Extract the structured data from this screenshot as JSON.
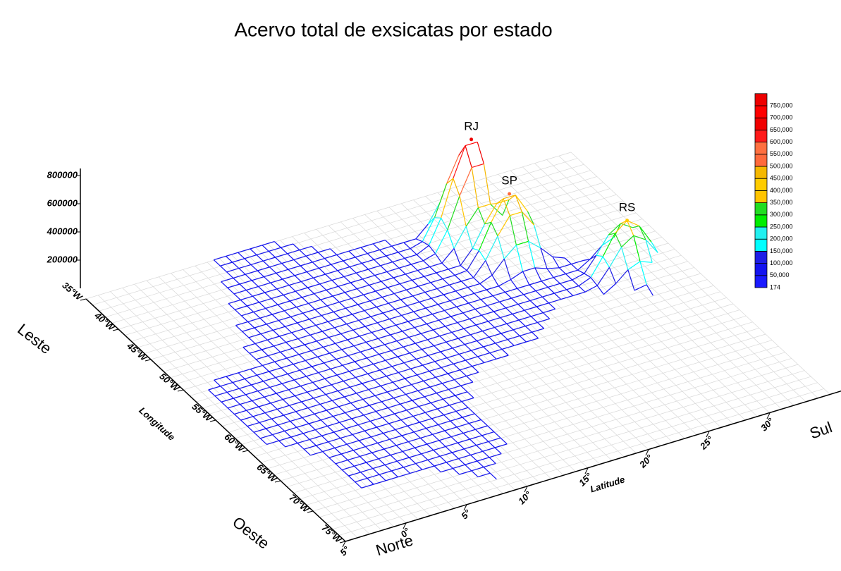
{
  "chart_data": {
    "type": "surface3d",
    "title": "Acervo total de exsicatas por estado",
    "xlabel": "Longitude",
    "ylabel": "Latitude",
    "direction_labels": {
      "lon_start": "Leste",
      "lon_end": "Oeste",
      "lat_start": "Norte",
      "lat_end": "Sul"
    },
    "xlim": [
      -35,
      -75
    ],
    "xticks": [
      {
        "value": -35,
        "label": "35°W"
      },
      {
        "value": -40,
        "label": "40°W"
      },
      {
        "value": -45,
        "label": "45°W"
      },
      {
        "value": -50,
        "label": "50°W"
      },
      {
        "value": -55,
        "label": "55°W"
      },
      {
        "value": -60,
        "label": "60°W"
      },
      {
        "value": -65,
        "label": "65°W"
      },
      {
        "value": -70,
        "label": "70°W"
      },
      {
        "value": -75,
        "label": "75°W"
      }
    ],
    "ylim": [
      5,
      -35
    ],
    "yticks": [
      {
        "value": 5,
        "label": "5°"
      },
      {
        "value": 0,
        "label": "0°"
      },
      {
        "value": -5,
        "label": "5°"
      },
      {
        "value": -10,
        "label": "10°"
      },
      {
        "value": -15,
        "label": "15°"
      },
      {
        "value": -20,
        "label": "20°"
      },
      {
        "value": -25,
        "label": "25°"
      },
      {
        "value": -30,
        "label": "30°"
      }
    ],
    "zlim": [
      0,
      850000
    ],
    "zticks": [
      200000,
      400000,
      600000,
      800000
    ],
    "peaks": [
      {
        "name": "RJ",
        "lon": -43,
        "lat": -22.5,
        "value": 760000
      },
      {
        "name": "SP",
        "lon": -47,
        "lat": -23.5,
        "value": 520000
      },
      {
        "name": "RS",
        "lon": -53,
        "lat": -30,
        "value": 420000
      }
    ],
    "colorbar": {
      "levels": [
        {
          "value": 174,
          "label": "174"
        },
        {
          "value": 50000,
          "label": "50,000"
        },
        {
          "value": 100000,
          "label": "100,000"
        },
        {
          "value": 150000,
          "label": "150,000"
        },
        {
          "value": 200000,
          "label": "200,000"
        },
        {
          "value": 250000,
          "label": "250,000"
        },
        {
          "value": 300000,
          "label": "300,000"
        },
        {
          "value": 350000,
          "label": "350,000"
        },
        {
          "value": 400000,
          "label": "400,000"
        },
        {
          "value": 450000,
          "label": "450,000"
        },
        {
          "value": 500000,
          "label": "500,000"
        },
        {
          "value": 550000,
          "label": "550,000"
        },
        {
          "value": 600000,
          "label": "600,000"
        },
        {
          "value": 650000,
          "label": "650,000"
        },
        {
          "value": 700000,
          "label": "700,000"
        },
        {
          "value": 750000,
          "label": "750,000"
        }
      ],
      "colors": [
        "#1a1aff",
        "#1414f0",
        "#1e1ee6",
        "#00ffff",
        "#22f0f0",
        "#00ee00",
        "#22dd22",
        "#ffc400",
        "#ffcc00",
        "#f5b800",
        "#ff6a3c",
        "#ff7040",
        "#ff1a1a",
        "#f00000",
        "#ff0000",
        "#ee0000"
      ]
    }
  }
}
